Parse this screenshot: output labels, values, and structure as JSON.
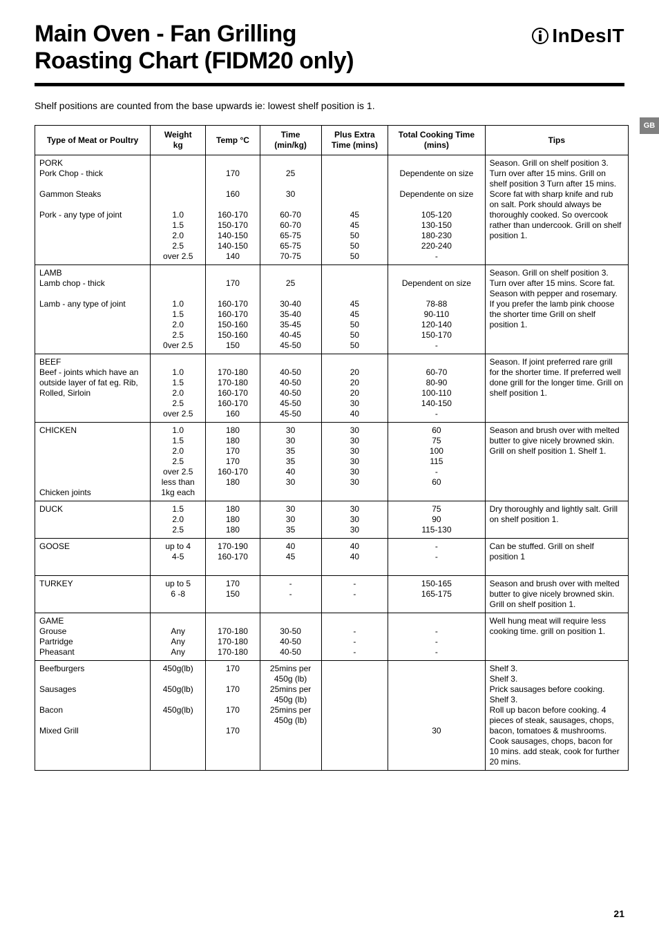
{
  "header": {
    "title_line1": "Main Oven - Fan Grilling",
    "title_line2": "Roasting Chart (FIDM20 only)",
    "brand": "InDesIT",
    "tab": "GB",
    "page_number": "21"
  },
  "intro": "Shelf positions are counted from the base upwards ie: lowest shelf position is 1.",
  "table": {
    "headers": {
      "type": "Type of Meat or Poultry",
      "weight": "Weight\nkg",
      "temp": "Temp °C",
      "time": "Time\n(min/kg)",
      "extra": "Plus Extra\nTime (mins)",
      "total": "Total Cooking Time\n(mins)",
      "tips": "Tips"
    },
    "rows": [
      {
        "type": "PORK\nPork Chop - thick\n\nGammon Steaks\n\nPork - any type of joint",
        "weight": "\n\n\n\n\n1.0\n1.5\n2.0\n2.5\nover 2.5",
        "temp": "\n170\n\n160\n\n160-170\n150-170\n140-150\n140-150\n140",
        "time": "\n25\n\n30\n\n60-70\n60-70\n65-75\n65-75\n70-75",
        "extra": "\n\n\n\n\n45\n45\n50\n50\n50",
        "total": "\nDependente on size\n\nDependente on size\n\n105-120\n130-150\n180-230\n220-240\n-",
        "tips": "Season. Grill on shelf position 3. Turn over after 15 mins. Grill on shelf position 3 Turn after 15 mins. Score fat with sharp knife and rub on salt. Pork should always be thoroughly cooked. So overcook rather than undercook. Grill on shelf position 1."
      },
      {
        "type": "LAMB\nLamb chop - thick\n\nLamb - any type of joint",
        "weight": "\n\n\n1.0\n1.5\n2.0\n2.5\n0ver 2.5",
        "temp": "\n170\n\n160-170\n160-170\n150-160\n150-160\n150",
        "time": "\n25\n\n30-40\n35-40\n35-45\n40-45\n45-50",
        "extra": "\n\n\n45\n45\n50\n50\n50",
        "total": "\nDependent on size\n\n78-88\n90-110\n120-140\n150-170\n-",
        "tips": "Season. Grill on shelf position 3. Turn over after 15 mins. Score fat. Season with pepper and rosemary. If you prefer the lamb pink choose the shorter time Grill on shelf position 1."
      },
      {
        "type": "BEEF\nBeef - joints which have an outside layer of fat eg. Rib, Rolled, Sirloin",
        "weight": "\n1.0\n1.5\n2.0\n2.5\nover 2.5",
        "temp": "\n170-180\n170-180\n160-170\n160-170\n160",
        "time": "\n40-50\n40-50\n40-50\n45-50\n45-50",
        "extra": "\n20\n20\n20\n30\n40",
        "total": "\n60-70\n80-90\n100-110\n140-150\n-",
        "tips": "Season. If joint preferred rare grill for the shorter time. If preferred well done grill for the longer time. Grill on shelf position 1."
      },
      {
        "type": "CHICKEN\n\n\n\n\n\nChicken joints",
        "weight": "1.0\n1.5\n2.0\n2.5\nover 2.5\nless than 1kg each",
        "temp": "180\n180\n170\n170\n160-170\n180",
        "time": "30\n30\n35\n35\n40\n30",
        "extra": "30\n30\n30\n30\n30\n30",
        "total": "60\n75\n100\n115\n-\n60",
        "tips": "Season and brush over with melted butter to give nicely browned skin. Grill on shelf position 1. Shelf 1."
      },
      {
        "type": "DUCK",
        "weight": "1.5\n2.0\n2.5",
        "temp": "180\n180\n180",
        "time": "30\n30\n35",
        "extra": "30\n30\n30",
        "total": "75\n90\n115-130",
        "tips": "Dry thoroughly and lightly salt. Grill on shelf position 1.\n\n"
      },
      {
        "type": "GOOSE",
        "weight": "up to 4\n4-5",
        "temp": "170-190\n160-170",
        "time": "40\n45",
        "extra": "40\n40",
        "total": "-\n-",
        "tips": "Can be stuffed. Grill on shelf position 1\n\n"
      },
      {
        "type": "TURKEY",
        "weight": "up to 5\n6 -8",
        "temp": "170\n150",
        "time": "-\n-",
        "extra": "-\n-",
        "total": "150-165\n165-175",
        "tips": "Season and brush over with melted butter to give nicely browned skin. Grill on shelf position 1.\n"
      },
      {
        "type": "GAME\nGrouse\nPartridge\nPheasant",
        "weight": "\nAny\nAny\nAny",
        "temp": "\n170-180\n170-180\n170-180",
        "time": "\n30-50\n40-50\n40-50",
        "extra": "\n-\n-\n-",
        "total": "\n-\n-\n-",
        "tips": "Well hung meat will require less cooking time. grill on position 1."
      },
      {
        "type": "Beefburgers\n\nSausages\n\nBacon\n\nMixed Grill",
        "weight": "450g(lb)\n\n450g(lb)\n\n450g(lb)",
        "temp": "170\n\n170\n\n170\n\n170",
        "time": "25mins per 450g (lb)\n25mins per 450g (lb)\n25mins per 450g (lb)",
        "extra": "",
        "total": "\n\n\n\n\n\n30",
        "tips": "Shelf 3.\nShelf 3.\nPrick sausages before cooking.\nShelf 3.\nRoll up bacon before cooking. 4 pieces of steak, sausages, chops, bacon, tomatoes & mushrooms. Cook sausages, chops, bacon for 10 mins. add steak, cook for further 20 mins."
      }
    ]
  }
}
